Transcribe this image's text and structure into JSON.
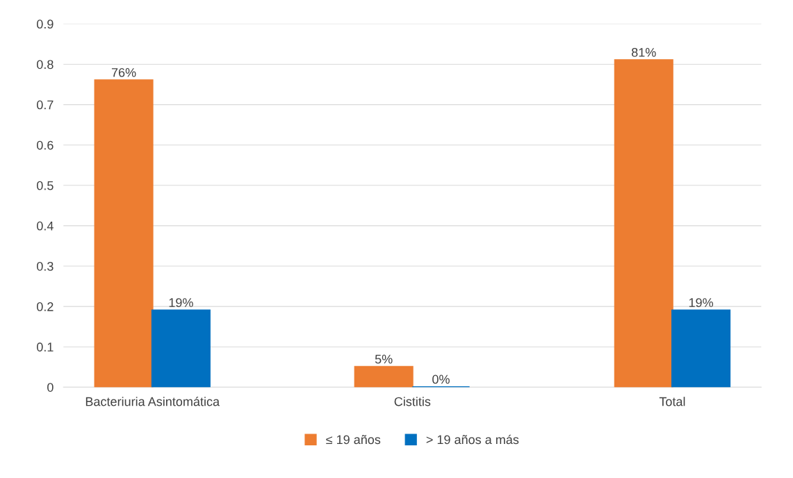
{
  "chart_data": {
    "type": "bar",
    "categories": [
      "Bacteriuria Asintomática",
      "Cistitis",
      "Total"
    ],
    "series": [
      {
        "name": "≤ 19 años",
        "color": "#ed7d31",
        "values": [
          0.76,
          0.05,
          0.81
        ],
        "value_labels": [
          "76%",
          "5%",
          "81%"
        ]
      },
      {
        "name": "> 19 años a más",
        "color": "#0070c0",
        "values": [
          0.19,
          0,
          0.19
        ],
        "value_labels": [
          "19%",
          "0%",
          "19%"
        ]
      }
    ],
    "ylim": [
      0,
      0.9
    ],
    "yticks": [
      0,
      0.1,
      0.2,
      0.3,
      0.4,
      0.5,
      0.6,
      0.7,
      0.8,
      0.9
    ],
    "grid": "y",
    "legend": "bottom"
  }
}
